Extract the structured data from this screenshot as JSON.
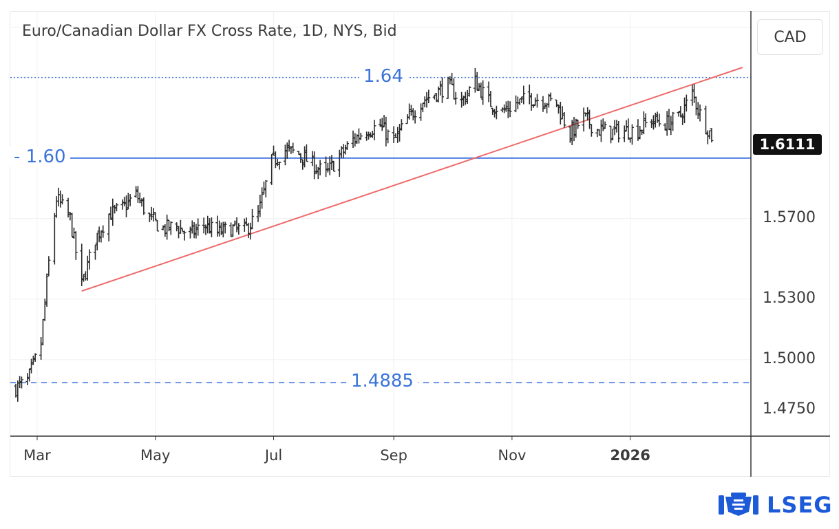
{
  "chart_data": {
    "type": "ohlc",
    "title": "Euro/Canadian Dollar FX Cross Rate, 1D, NYS, Bid",
    "currency": "CAD",
    "last_price": "1.6111",
    "ylim": [
      1.462,
      1.673
    ],
    "y_ticks": [
      "1.5700",
      "1.5300",
      "1.5000",
      "1.4750"
    ],
    "x_ticks": [
      "Mar",
      "May",
      "Jul",
      "Sep",
      "Nov",
      "2026"
    ],
    "timeline": {
      "start": "2025-02-18",
      "end": "2026-02-12",
      "axis_end": "2026-02-28"
    },
    "month_starts": [
      "2025-03-01",
      "2025-05-01",
      "2025-07-01",
      "2025-09-01",
      "2025-11-01",
      "2026-01-01"
    ],
    "levels": [
      {
        "name": "level-1-64",
        "value": 1.64,
        "label": "1.64",
        "style": "dotted",
        "color": "#4a7fe0"
      },
      {
        "name": "level-1-60",
        "value": 1.6,
        "label": "- 1.60",
        "style": "solid",
        "color": "#3a6fe0"
      },
      {
        "name": "level-1-4885",
        "value": 1.4885,
        "label": "1.4885",
        "style": "dashed",
        "color": "#3a6fe0"
      }
    ],
    "trendline": {
      "color": "#ee6a6a",
      "from": {
        "date": "2025-03-24",
        "value": 1.534
      },
      "to": {
        "date": "2026-02-28",
        "value": 1.645
      }
    },
    "price_path": [
      [
        "2025-02-18",
        1.486
      ],
      [
        "2025-02-24",
        1.489
      ],
      [
        "2025-03-03",
        1.508
      ],
      [
        "2025-03-07",
        1.548
      ],
      [
        "2025-03-11",
        1.58
      ],
      [
        "2025-03-18",
        1.57
      ],
      [
        "2025-03-24",
        1.537
      ],
      [
        "2025-03-31",
        1.56
      ],
      [
        "2025-04-07",
        1.572
      ],
      [
        "2025-04-14",
        1.575
      ],
      [
        "2025-04-21",
        1.582
      ],
      [
        "2025-04-28",
        1.57
      ],
      [
        "2025-05-05",
        1.565
      ],
      [
        "2025-05-12",
        1.566
      ],
      [
        "2025-05-19",
        1.562
      ],
      [
        "2025-05-26",
        1.567
      ],
      [
        "2025-06-02",
        1.563
      ],
      [
        "2025-06-09",
        1.565
      ],
      [
        "2025-06-16",
        1.564
      ],
      [
        "2025-06-23",
        1.572
      ],
      [
        "2025-06-30",
        1.598
      ],
      [
        "2025-07-07",
        1.604
      ],
      [
        "2025-07-14",
        1.602
      ],
      [
        "2025-07-21",
        1.597
      ],
      [
        "2025-07-28",
        1.592
      ],
      [
        "2025-08-04",
        1.601
      ],
      [
        "2025-08-11",
        1.609
      ],
      [
        "2025-08-18",
        1.614
      ],
      [
        "2025-08-25",
        1.616
      ],
      [
        "2025-09-01",
        1.608
      ],
      [
        "2025-09-08",
        1.619
      ],
      [
        "2025-09-15",
        1.628
      ],
      [
        "2025-09-22",
        1.632
      ],
      [
        "2025-09-29",
        1.636
      ],
      [
        "2025-10-06",
        1.628
      ],
      [
        "2025-10-13",
        1.638
      ],
      [
        "2025-10-20",
        1.628
      ],
      [
        "2025-10-27",
        1.623
      ],
      [
        "2025-11-03",
        1.627
      ],
      [
        "2025-11-10",
        1.63
      ],
      [
        "2025-11-17",
        1.629
      ],
      [
        "2025-11-24",
        1.627
      ],
      [
        "2025-12-01",
        1.612
      ],
      [
        "2025-12-08",
        1.62
      ],
      [
        "2025-12-15",
        1.614
      ],
      [
        "2025-12-22",
        1.613
      ],
      [
        "2026-01-05",
        1.614
      ],
      [
        "2026-01-12",
        1.619
      ],
      [
        "2026-01-19",
        1.617
      ],
      [
        "2026-01-26",
        1.62
      ],
      [
        "2026-02-02",
        1.632
      ],
      [
        "2026-02-06",
        1.622
      ],
      [
        "2026-02-12",
        1.611
      ]
    ]
  },
  "branding": {
    "logo_text": "LSEG",
    "brand_color": "#1d5ad8"
  }
}
